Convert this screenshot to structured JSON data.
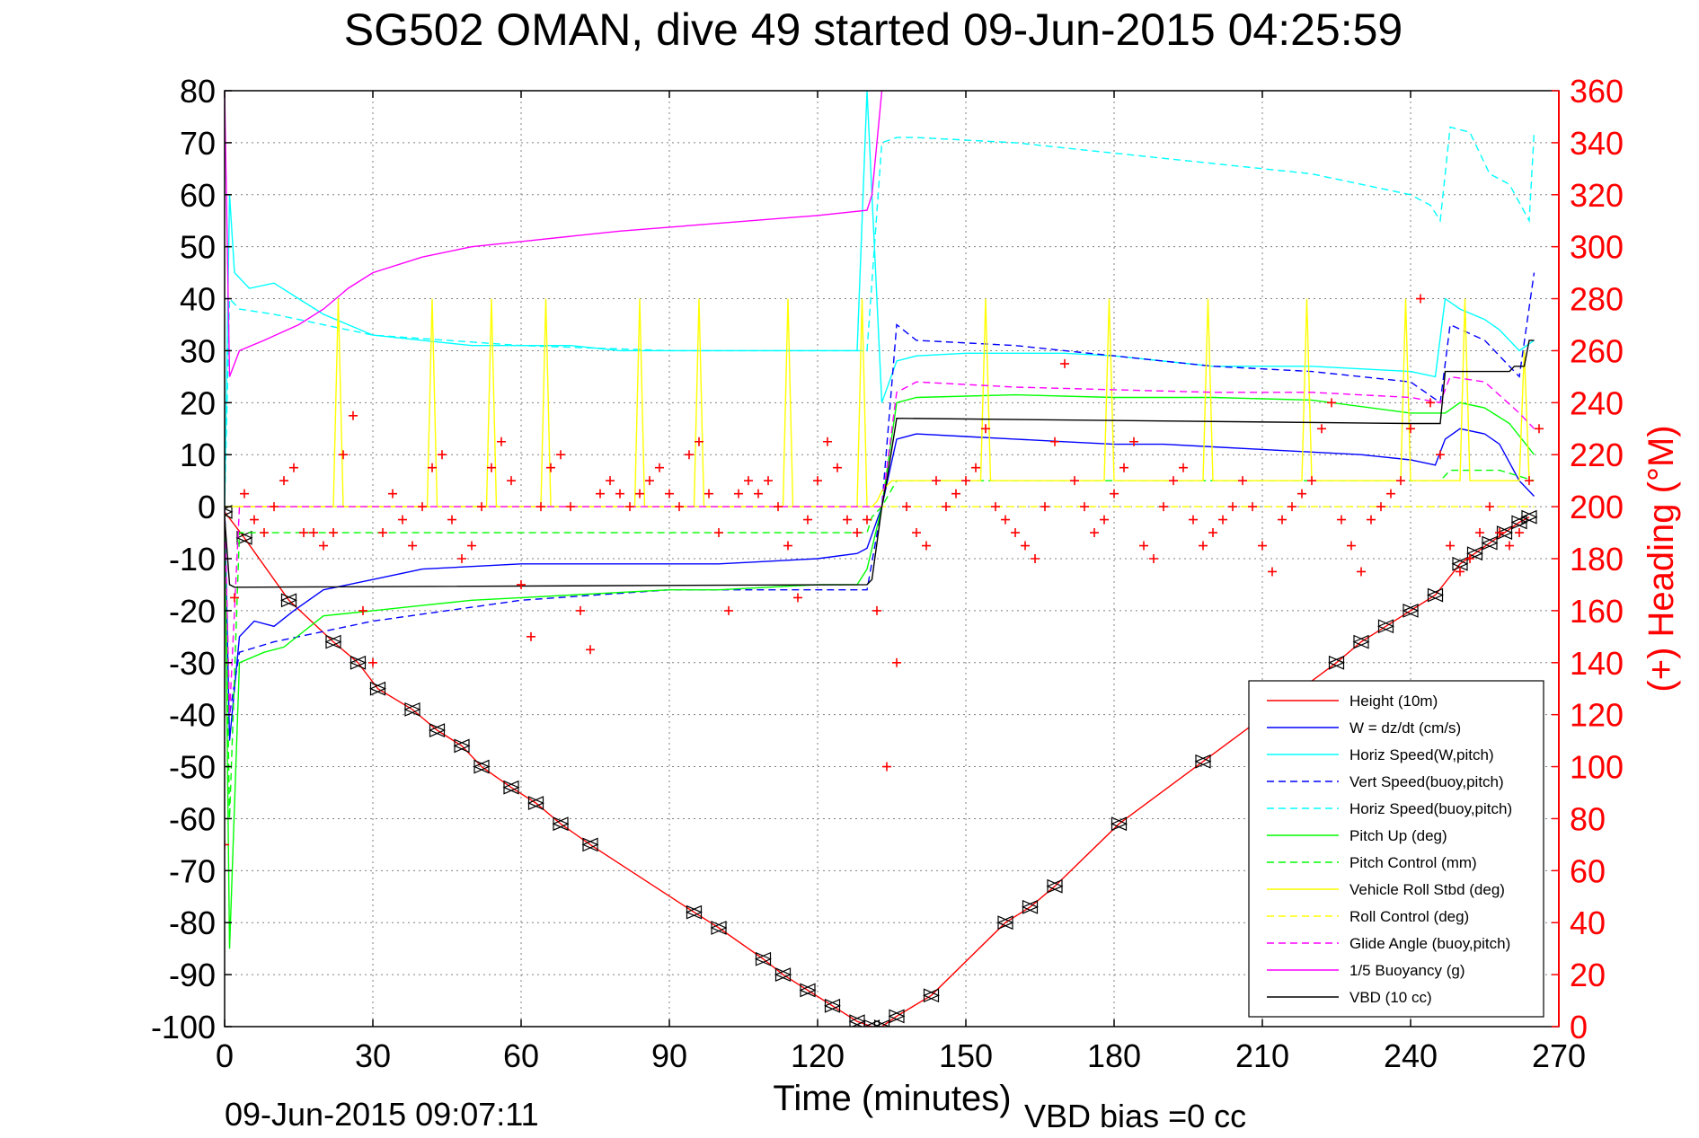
{
  "footer": {
    "date_stamp": "09-Jun-2015 09:07:11",
    "vbd_bias": "VBD bias =0 cc"
  },
  "chart_data": {
    "type": "line",
    "title": "SG502 OMAN, dive 49 started 09-Jun-2015 04:25:59",
    "xlabel": "Time (minutes)",
    "ylabel": "",
    "y2label": "(+) Heading (°M)",
    "xlim": [
      0,
      270
    ],
    "ylim": [
      -100,
      80
    ],
    "y2lim": [
      0,
      360
    ],
    "xticks": [
      0,
      30,
      60,
      90,
      120,
      150,
      180,
      210,
      240,
      270
    ],
    "yticks": [
      -100,
      -90,
      -80,
      -70,
      -60,
      -50,
      -40,
      -30,
      -20,
      -10,
      0,
      10,
      20,
      30,
      40,
      50,
      60,
      70,
      80
    ],
    "y2ticks": [
      0,
      20,
      40,
      60,
      80,
      100,
      120,
      140,
      160,
      180,
      200,
      220,
      240,
      260,
      280,
      300,
      320,
      340,
      360
    ],
    "grid": true,
    "legend_position": "bottom-right",
    "colors": {
      "axes": "#000000",
      "grid": "#808080",
      "right_axis": "#ff0000",
      "red": "#ff0000",
      "blue": "#0000ff",
      "cyan": "#00ffff",
      "green": "#00ff00",
      "yellow": "#ffff00",
      "magenta": "#ff00ff",
      "black": "#000000"
    },
    "series": [
      {
        "name": "Height (10m)",
        "color": "#ff0000",
        "style": "solid",
        "marker": "triangle",
        "x": [
          0,
          4,
          13,
          22,
          27,
          31,
          38,
          43,
          48,
          52,
          58,
          63,
          68,
          74,
          95,
          100,
          109,
          113,
          118,
          123,
          128,
          131,
          133,
          136,
          143,
          158,
          163,
          168,
          181,
          198,
          225,
          230,
          235,
          240,
          245,
          250,
          253,
          256,
          259,
          262,
          264
        ],
        "y": [
          -1,
          -6,
          -18,
          -26,
          -30,
          -35,
          -39,
          -43,
          -46,
          -50,
          -54,
          -57,
          -61,
          -65,
          -78,
          -81,
          -87,
          -90,
          -93,
          -96,
          -99,
          -100,
          -100,
          -98,
          -94,
          -80,
          -77,
          -73,
          -61,
          -49,
          -30,
          -26,
          -23,
          -20,
          -17,
          -11,
          -9,
          -7,
          -5,
          -3,
          -2
        ]
      },
      {
        "name": "W = dz/dt (cm/s)",
        "color": "#0000ff",
        "style": "solid",
        "x": [
          0,
          1,
          3,
          6,
          10,
          14,
          20,
          30,
          40,
          50,
          60,
          70,
          80,
          90,
          100,
          110,
          120,
          128,
          130,
          133,
          136,
          140,
          150,
          160,
          170,
          180,
          190,
          200,
          210,
          220,
          230,
          240,
          245,
          247,
          250,
          255,
          258,
          262,
          265
        ],
        "y": [
          0,
          -45,
          -25,
          -22,
          -23,
          -20,
          -16,
          -14,
          -12,
          -11.5,
          -11,
          -11,
          -11,
          -11,
          -11,
          -10.5,
          -10,
          -9,
          -8,
          0,
          13,
          14,
          13.5,
          13,
          12.5,
          12,
          12,
          11.5,
          11,
          10.5,
          10,
          9,
          8,
          13,
          15,
          14,
          12,
          5,
          2
        ]
      },
      {
        "name": "Horiz Speed(W,pitch)",
        "color": "#00ffff",
        "style": "solid",
        "x": [
          0,
          1,
          2,
          5,
          10,
          15,
          20,
          30,
          40,
          50,
          60,
          70,
          80,
          90,
          100,
          110,
          120,
          128,
          130,
          133,
          136,
          140,
          150,
          160,
          170,
          180,
          190,
          200,
          210,
          220,
          230,
          240,
          245,
          247,
          250,
          255,
          258,
          262,
          265
        ],
        "y": [
          0,
          60,
          45,
          42,
          43,
          40,
          37,
          33,
          32,
          31,
          31,
          31,
          30,
          30,
          30,
          30,
          30,
          30,
          80,
          20,
          28,
          29,
          29.5,
          29.5,
          29.5,
          29,
          28,
          27,
          27,
          27,
          26.5,
          26,
          25,
          40,
          38,
          36,
          34,
          30,
          32
        ]
      },
      {
        "name": "Vert Speed(buoy,pitch)",
        "color": "#0000ff",
        "style": "dashed",
        "x": [
          0,
          1,
          3,
          10,
          30,
          60,
          90,
          120,
          130,
          133,
          136,
          140,
          160,
          180,
          200,
          220,
          240,
          246,
          248,
          255,
          262,
          265
        ],
        "y": [
          0,
          -40,
          -28,
          -26,
          -22,
          -18,
          -16,
          -16,
          -16,
          0,
          35,
          32,
          31,
          29,
          27,
          26,
          24,
          20,
          35,
          32,
          25,
          45
        ]
      },
      {
        "name": "Horiz Speed(buoy,pitch)",
        "color": "#00ffff",
        "style": "dashed",
        "x": [
          0,
          1,
          3,
          10,
          30,
          60,
          90,
          120,
          130,
          133,
          136,
          140,
          160,
          180,
          200,
          220,
          240,
          244,
          246,
          248,
          252,
          256,
          260,
          264,
          265
        ],
        "y": [
          0,
          40,
          38,
          37,
          33,
          31,
          30,
          30,
          30,
          70,
          71,
          71,
          70,
          68,
          66,
          64,
          60,
          58,
          55,
          73,
          72,
          64,
          62,
          55,
          72
        ]
      },
      {
        "name": "Pitch Up (deg)",
        "color": "#00ff00",
        "style": "solid",
        "x": [
          0,
          1,
          3,
          8,
          12,
          16,
          20,
          30,
          40,
          50,
          60,
          70,
          80,
          90,
          100,
          110,
          120,
          128,
          130,
          133,
          136,
          140,
          160,
          180,
          200,
          220,
          240,
          247,
          250,
          255,
          260,
          265
        ],
        "y": [
          0,
          -85,
          -30,
          -28,
          -27,
          -24,
          -21,
          -20,
          -19,
          -18,
          -17.5,
          -17,
          -16.5,
          -16,
          -16,
          -15.5,
          -15,
          -15,
          -12,
          0,
          20,
          21,
          21.5,
          21,
          21,
          20.5,
          18,
          18,
          20,
          19,
          16,
          10
        ]
      },
      {
        "name": "Pitch Control (mm)",
        "color": "#00ff00",
        "style": "dashed",
        "x": [
          0,
          1,
          3,
          130,
          131,
          133,
          136,
          140,
          244,
          246,
          248,
          258,
          265
        ],
        "y": [
          0,
          -60,
          -5,
          -5,
          -2,
          0,
          5,
          5,
          5,
          5,
          7,
          7,
          5
        ]
      },
      {
        "name": "Vehicle Roll Stbd (deg)",
        "color": "#ffff00",
        "style": "solid",
        "x": [
          0,
          22,
          23,
          24,
          41,
          42,
          43,
          53,
          54,
          55,
          64,
          65,
          66,
          83,
          84,
          85,
          95,
          96,
          97,
          113,
          114,
          115,
          128,
          129,
          130,
          131,
          132,
          133,
          135,
          136,
          137,
          153,
          154,
          155,
          158,
          159,
          160,
          178,
          179,
          180,
          198,
          199,
          200,
          218,
          219,
          220,
          238,
          239,
          240,
          250,
          251,
          252,
          255,
          256,
          257,
          262,
          263,
          264,
          265
        ],
        "y": [
          0,
          0,
          40,
          0,
          0,
          40,
          0,
          0,
          40,
          0,
          0,
          40,
          0,
          0,
          40,
          0,
          0,
          40,
          0,
          0,
          40,
          0,
          0,
          40,
          0,
          0,
          1,
          3,
          5,
          5,
          5,
          5,
          40,
          5,
          5,
          5,
          5,
          5,
          40,
          5,
          5,
          40,
          5,
          5,
          40,
          5,
          5,
          40,
          5,
          5,
          40,
          5,
          5,
          5,
          5,
          5,
          30,
          5,
          5
        ]
      },
      {
        "name": "Roll Control (deg)",
        "color": "#ffff00",
        "style": "dashed",
        "x": [
          0,
          265
        ],
        "y": [
          0,
          0
        ]
      },
      {
        "name": "Glide Angle (buoy,pitch)",
        "color": "#ff00ff",
        "style": "dashed",
        "x": [
          0,
          1,
          3,
          10,
          30,
          60,
          90,
          120,
          130,
          133,
          136,
          140,
          160,
          180,
          200,
          220,
          240,
          246,
          248,
          255,
          262,
          265
        ],
        "y": [
          0,
          -40,
          0,
          0,
          0,
          0,
          0,
          0,
          0,
          0,
          22,
          24,
          23,
          22.5,
          22,
          22,
          21,
          20,
          25,
          24,
          18,
          15
        ]
      },
      {
        "name": "1/5 Buoyancy (g)",
        "color": "#ff00ff",
        "style": "solid",
        "x": [
          0,
          1,
          3,
          8,
          15,
          20,
          25,
          30,
          40,
          50,
          60,
          80,
          100,
          120,
          130,
          131,
          132,
          133
        ],
        "y": [
          80,
          25,
          30,
          32,
          35,
          38,
          42,
          45,
          48,
          50,
          51,
          53,
          54.5,
          56,
          57,
          60,
          70,
          80
        ]
      },
      {
        "name": "VBD (10 cc)",
        "color": "#000000",
        "style": "solid",
        "x": [
          0,
          1,
          2,
          130,
          131,
          133,
          134,
          136,
          240,
          241,
          246,
          247,
          260,
          261,
          263,
          264,
          265
        ],
        "y": [
          -2,
          -15,
          -15.5,
          -15,
          -14,
          0,
          5,
          17,
          16,
          16,
          16,
          26,
          26,
          27,
          27,
          32,
          32
        ]
      },
      {
        "name": "Heading",
        "axis": "right",
        "color": "#ff0000",
        "style": "markers",
        "marker": "plus",
        "x": [
          0,
          2,
          4,
          6,
          8,
          10,
          12,
          14,
          16,
          18,
          20,
          22,
          24,
          26,
          28,
          30,
          32,
          34,
          36,
          38,
          40,
          42,
          44,
          46,
          48,
          50,
          52,
          54,
          56,
          58,
          60,
          62,
          64,
          66,
          68,
          70,
          72,
          74,
          76,
          78,
          80,
          82,
          84,
          86,
          88,
          90,
          92,
          94,
          96,
          98,
          100,
          102,
          104,
          106,
          108,
          110,
          112,
          114,
          116,
          118,
          120,
          122,
          124,
          126,
          128,
          130,
          132,
          134,
          136,
          138,
          140,
          142,
          144,
          146,
          148,
          150,
          152,
          154,
          156,
          158,
          160,
          162,
          164,
          166,
          168,
          170,
          172,
          174,
          176,
          178,
          180,
          182,
          184,
          186,
          188,
          190,
          192,
          194,
          196,
          198,
          200,
          202,
          204,
          206,
          208,
          210,
          212,
          214,
          216,
          218,
          220,
          222,
          224,
          226,
          228,
          230,
          232,
          234,
          236,
          238,
          240,
          242,
          244,
          246,
          248,
          250,
          252,
          254,
          256,
          258,
          260,
          262,
          264,
          266
        ],
        "y": [
          70,
          165,
          205,
          195,
          190,
          200,
          210,
          215,
          190,
          190,
          185,
          190,
          220,
          235,
          160,
          140,
          190,
          205,
          195,
          185,
          200,
          215,
          220,
          195,
          180,
          185,
          200,
          215,
          225,
          210,
          170,
          150,
          200,
          215,
          220,
          200,
          160,
          145,
          205,
          210,
          205,
          200,
          205,
          210,
          215,
          205,
          200,
          220,
          225,
          205,
          190,
          160,
          205,
          210,
          205,
          210,
          200,
          185,
          165,
          195,
          210,
          225,
          215,
          195,
          190,
          195,
          160,
          100,
          140,
          200,
          190,
          185,
          210,
          200,
          205,
          210,
          215,
          230,
          200,
          195,
          190,
          185,
          180,
          200,
          225,
          255,
          210,
          200,
          190,
          195,
          205,
          215,
          225,
          185,
          180,
          200,
          210,
          215,
          195,
          185,
          190,
          195,
          200,
          210,
          200,
          185,
          175,
          195,
          200,
          205,
          210,
          230,
          240,
          195,
          185,
          175,
          195,
          200,
          205,
          210,
          230,
          280,
          240,
          220,
          185,
          175,
          180,
          190,
          200,
          190,
          185,
          190,
          210,
          230
        ]
      }
    ]
  }
}
